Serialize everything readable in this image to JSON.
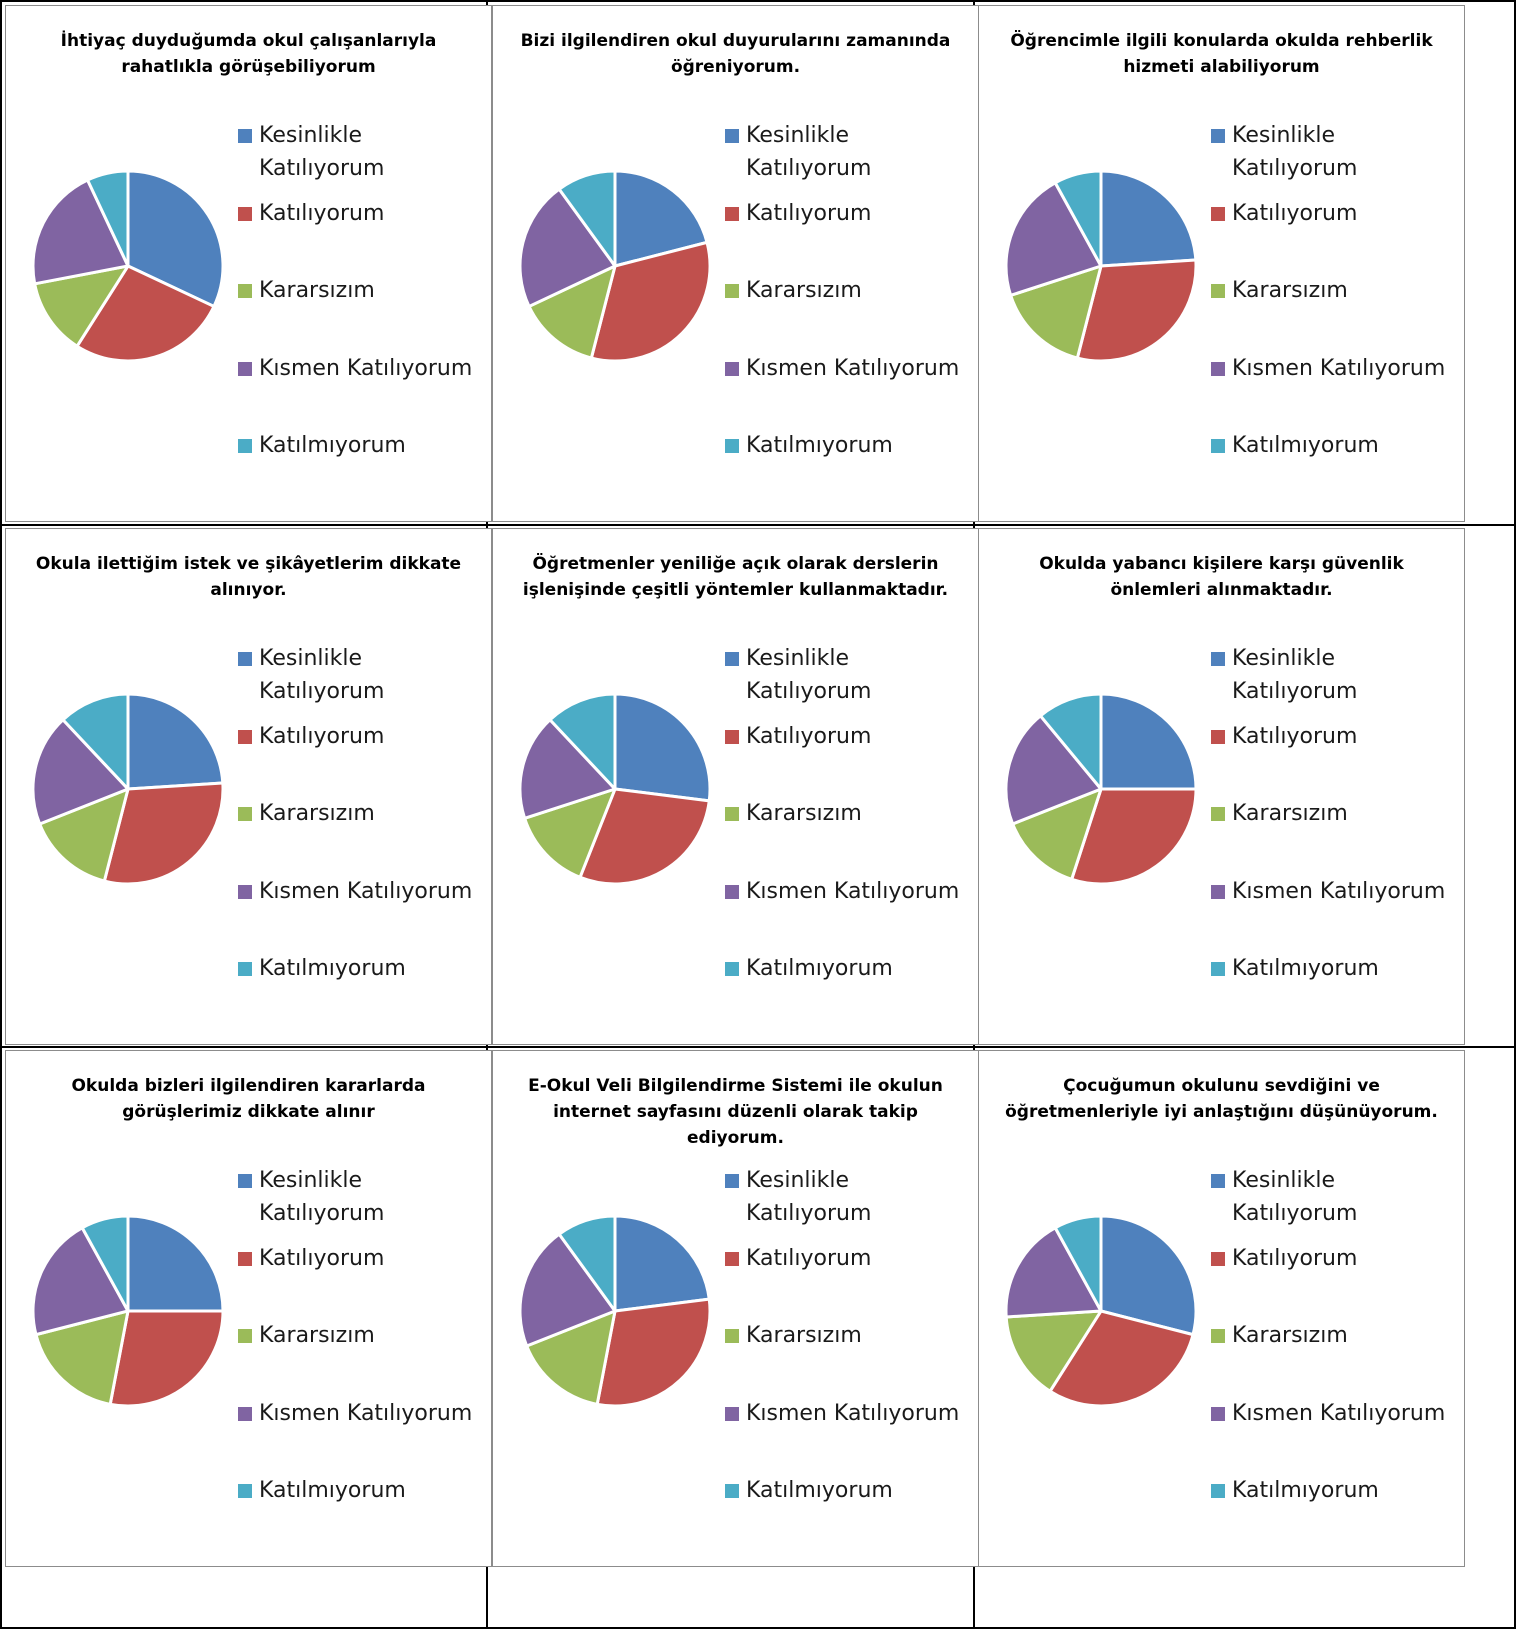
{
  "legend_labels": [
    "Kesinlikle Katılıyorum",
    "Katılıyorum",
    "Kararsızım",
    "Kısmen Katılıyorum",
    "Katılmıyorum"
  ],
  "colors": [
    "#4f81bd",
    "#c0504d",
    "#9bbb59",
    "#8064a2",
    "#4bacc6"
  ],
  "chart_data": [
    {
      "type": "pie",
      "title": "İhtiyaç duyduğumda okul çalışanlarıyla rahatlıkla görüşebiliyorum",
      "categories": [
        "Kesinlikle Katılıyorum",
        "Katılıyorum",
        "Kararsızım",
        "Kısmen Katılıyorum",
        "Katılmıyorum"
      ],
      "values": [
        32,
        27,
        13,
        21,
        7
      ]
    },
    {
      "type": "pie",
      "title": "Bizi ilgilendiren okul duyurularını zamanında öğreniyorum.",
      "categories": [
        "Kesinlikle Katılıyorum",
        "Katılıyorum",
        "Kararsızım",
        "Kısmen Katılıyorum",
        "Katılmıyorum"
      ],
      "values": [
        21,
        33,
        14,
        22,
        10
      ]
    },
    {
      "type": "pie",
      "title": "Öğrencimle ilgili konularda okulda rehberlik hizmeti alabiliyorum",
      "categories": [
        "Kesinlikle Katılıyorum",
        "Katılıyorum",
        "Kararsızım",
        "Kısmen Katılıyorum",
        "Katılmıyorum"
      ],
      "values": [
        24,
        30,
        16,
        22,
        8
      ]
    },
    {
      "type": "pie",
      "title": "Okula ilettiğim istek ve şikâyetlerim dikkate alınıyor.",
      "categories": [
        "Kesinlikle Katılıyorum",
        "Katılıyorum",
        "Kararsızım",
        "Kısmen Katılıyorum",
        "Katılmıyorum"
      ],
      "values": [
        24,
        30,
        15,
        19,
        12
      ]
    },
    {
      "type": "pie",
      "title": "Öğretmenler yeniliğe açık olarak derslerin işlenişinde çeşitli yöntemler kullanmaktadır.",
      "categories": [
        "Kesinlikle Katılıyorum",
        "Katılıyorum",
        "Kararsızım",
        "Kısmen Katılıyorum",
        "Katılmıyorum"
      ],
      "values": [
        27,
        29,
        14,
        18,
        12
      ]
    },
    {
      "type": "pie",
      "title": "Okulda yabancı kişilere karşı güvenlik önlemleri alınmaktadır.",
      "categories": [
        "Kesinlikle Katılıyorum",
        "Katılıyorum",
        "Kararsızım",
        "Kısmen Katılıyorum",
        "Katılmıyorum"
      ],
      "values": [
        25,
        30,
        14,
        20,
        11
      ]
    },
    {
      "type": "pie",
      "title": "Okulda bizleri ilgilendiren kararlarda görüşlerimiz dikkate alınır",
      "categories": [
        "Kesinlikle Katılıyorum",
        "Katılıyorum",
        "Kararsızım",
        "Kısmen Katılıyorum",
        "Katılmıyorum"
      ],
      "values": [
        25,
        28,
        18,
        21,
        8
      ]
    },
    {
      "type": "pie",
      "title": "E-Okul Veli Bilgilendirme Sistemi ile okulun internet sayfasını düzenli olarak takip ediyorum.",
      "categories": [
        "Kesinlikle Katılıyorum",
        "Katılıyorum",
        "Kararsızım",
        "Kısmen Katılıyorum",
        "Katılmıyorum"
      ],
      "values": [
        23,
        30,
        16,
        21,
        10
      ]
    },
    {
      "type": "pie",
      "title": "Çocuğumun okulunu sevdiğini ve öğretmenleriyle iyi anlaştığını düşünüyorum.",
      "categories": [
        "Kesinlikle Katılıyorum",
        "Katılıyorum",
        "Kararsızım",
        "Kısmen Katılıyorum",
        "Katılmıyorum"
      ],
      "values": [
        29,
        30,
        15,
        18,
        8
      ]
    }
  ]
}
